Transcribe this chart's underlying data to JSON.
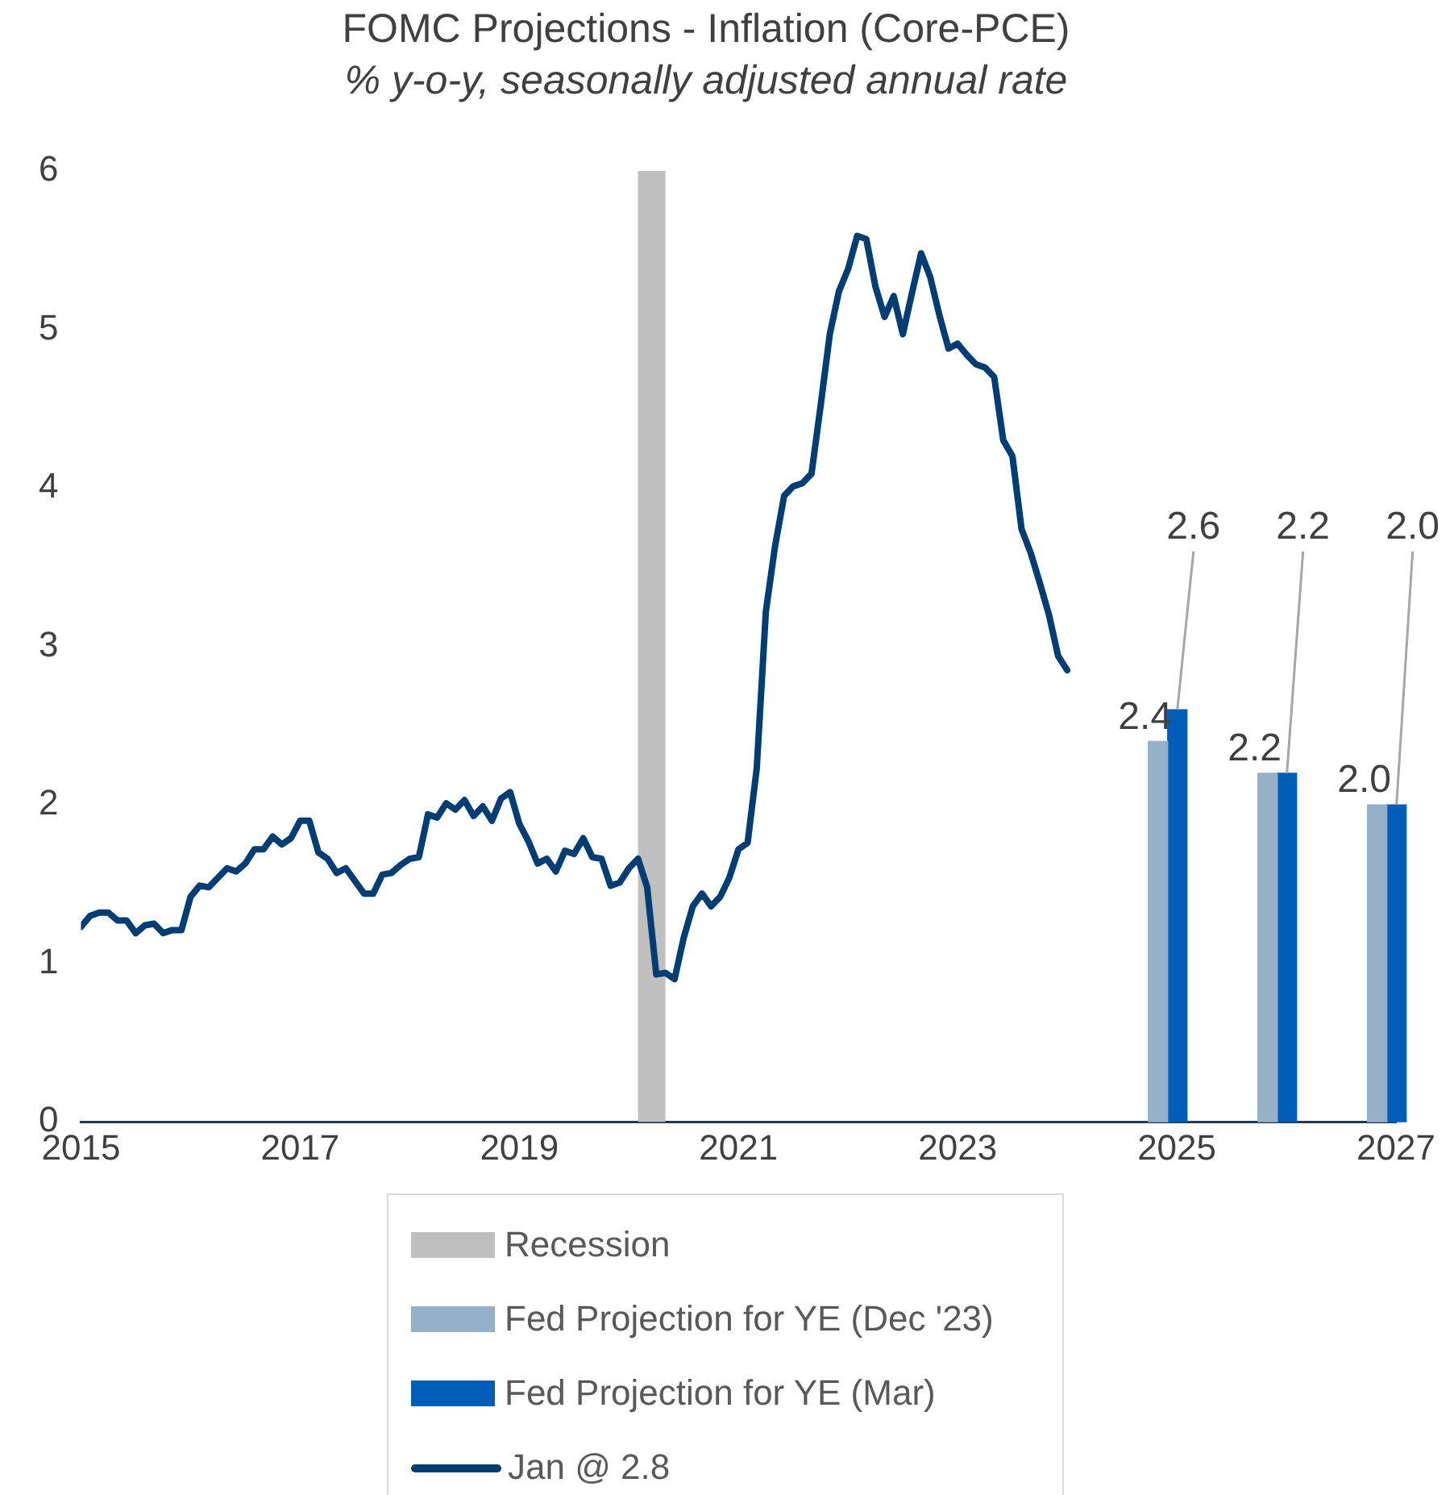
{
  "chart_data": {
    "type": "line",
    "title": "FOMC Projections - Inflation (Core-PCE)",
    "subtitle": "% y-o-y, seasonally adjusted annual rate",
    "xlim": [
      "2015",
      "2027"
    ],
    "xticks": [
      "2015",
      "2017",
      "2019",
      "2021",
      "2023",
      "2025",
      "2027"
    ],
    "ylim": [
      0,
      6
    ],
    "yticks": [
      0,
      1,
      2,
      3,
      4,
      5,
      6
    ],
    "legend": "bottom",
    "bands": [
      {
        "axis": "x",
        "from": "2020-02",
        "to": "2020-05",
        "label": "Recession",
        "color": "#bfbfbf"
      }
    ],
    "series": [
      {
        "name": "Fed Projection for YE (Dec '23)",
        "type": "bar",
        "color": "#95b0c9",
        "x": [
          "2024-12",
          "2025-12",
          "2026-12"
        ],
        "values": [
          2.4,
          2.2,
          2.0
        ],
        "value_labels": [
          "2.4",
          "2.2",
          "2.0"
        ]
      },
      {
        "name": "Fed Projection for YE (Mar)",
        "type": "bar",
        "color": "#005eb8",
        "x": [
          "2024-12",
          "2025-12",
          "2026-12"
        ],
        "values": [
          2.6,
          2.2,
          2.0
        ],
        "value_labels": [
          "2.6",
          "2.2",
          "2.0"
        ]
      },
      {
        "name": "Jan @ 2.8",
        "color": "#003d73",
        "x": [
          "2015-01",
          "2015-02",
          "2015-03",
          "2015-04",
          "2015-05",
          "2015-06",
          "2015-07",
          "2015-08",
          "2015-09",
          "2015-10",
          "2015-11",
          "2015-12",
          "2016-01",
          "2016-02",
          "2016-03",
          "2016-04",
          "2016-05",
          "2016-06",
          "2016-07",
          "2016-08",
          "2016-09",
          "2016-10",
          "2016-11",
          "2016-12",
          "2017-01",
          "2017-02",
          "2017-03",
          "2017-04",
          "2017-05",
          "2017-06",
          "2017-07",
          "2017-08",
          "2017-09",
          "2017-10",
          "2017-11",
          "2017-12",
          "2018-01",
          "2018-02",
          "2018-03",
          "2018-04",
          "2018-05",
          "2018-06",
          "2018-07",
          "2018-08",
          "2018-09",
          "2018-10",
          "2018-11",
          "2018-12",
          "2019-01",
          "2019-02",
          "2019-03",
          "2019-04",
          "2019-05",
          "2019-06",
          "2019-07",
          "2019-08",
          "2019-09",
          "2019-10",
          "2019-11",
          "2019-12",
          "2020-01",
          "2020-02",
          "2020-03",
          "2020-04",
          "2020-05",
          "2020-06",
          "2020-07",
          "2020-08",
          "2020-09",
          "2020-10",
          "2020-11",
          "2020-12",
          "2021-01",
          "2021-02",
          "2021-03",
          "2021-04",
          "2021-05",
          "2021-06",
          "2021-07",
          "2021-08",
          "2021-09",
          "2021-10",
          "2021-11",
          "2021-12",
          "2022-01",
          "2022-02",
          "2022-03",
          "2022-04",
          "2022-05",
          "2022-06",
          "2022-07",
          "2022-08",
          "2022-09",
          "2022-10",
          "2022-11",
          "2022-12",
          "2023-01",
          "2023-02",
          "2023-03",
          "2023-04",
          "2023-05",
          "2023-06",
          "2023-07",
          "2023-08",
          "2023-09",
          "2023-10",
          "2023-11",
          "2023-12",
          "2024-01"
        ],
        "values": [
          1.23,
          1.3,
          1.32,
          1.32,
          1.27,
          1.27,
          1.19,
          1.24,
          1.25,
          1.19,
          1.21,
          1.21,
          1.42,
          1.49,
          1.48,
          1.54,
          1.6,
          1.58,
          1.63,
          1.72,
          1.72,
          1.8,
          1.75,
          1.79,
          1.9,
          1.9,
          1.7,
          1.66,
          1.57,
          1.6,
          1.52,
          1.44,
          1.44,
          1.56,
          1.57,
          1.62,
          1.66,
          1.67,
          1.94,
          1.92,
          2.01,
          1.97,
          2.03,
          1.93,
          1.99,
          1.9,
          2.04,
          2.08,
          1.88,
          1.77,
          1.63,
          1.66,
          1.58,
          1.71,
          1.69,
          1.79,
          1.67,
          1.66,
          1.49,
          1.51,
          1.6,
          1.66,
          1.48,
          0.93,
          0.94,
          0.9,
          1.16,
          1.36,
          1.44,
          1.36,
          1.42,
          1.54,
          1.72,
          1.76,
          2.23,
          3.22,
          3.63,
          3.95,
          4.01,
          4.03,
          4.09,
          4.52,
          4.97,
          5.24,
          5.38,
          5.59,
          5.57,
          5.27,
          5.08,
          5.21,
          4.97,
          5.23,
          5.48,
          5.33,
          5.09,
          4.88,
          4.91,
          4.84,
          4.78,
          4.76,
          4.7,
          4.3,
          4.2,
          3.74,
          3.59,
          3.4,
          3.2,
          2.94,
          2.85
        ]
      }
    ]
  }
}
